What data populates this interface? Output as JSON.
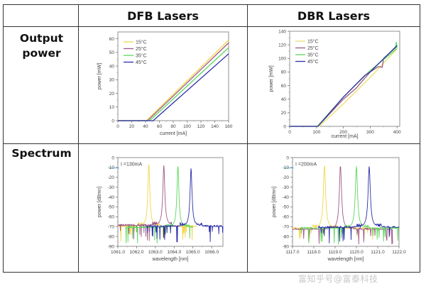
{
  "table": {
    "column_headers": [
      "",
      "DFB Lasers",
      "DBR Lasers"
    ],
    "row_headers": [
      {
        "line1": "Output",
        "line2": "power"
      },
      {
        "line1": "Spectrum",
        "line2": ""
      }
    ]
  },
  "watermark": "富知乎号@富泰科技",
  "colors": {
    "t15": "#f2d64a",
    "t25": "#9e5a86",
    "t35": "#5cd65c",
    "t45": "#2b2fa8",
    "border": "#333333"
  },
  "chart_data": [
    {
      "id": "dfb_power",
      "type": "line",
      "title": "DFB Lasers - Output power",
      "xlabel": "current [mA]",
      "ylabel": "power [mW]",
      "xlim": [
        0,
        160
      ],
      "ylim": [
        0,
        65
      ],
      "xticks": [
        0,
        20,
        40,
        60,
        80,
        100,
        120,
        140,
        160
      ],
      "yticks": [
        0,
        10,
        20,
        30,
        40,
        50,
        60
      ],
      "legend": [
        "15°C",
        "25°C",
        "35°C",
        "45°C"
      ],
      "legend_position": "upper-left",
      "series": [
        {
          "name": "15°C",
          "color": "#f2d64a",
          "x": [
            0,
            41,
            160
          ],
          "y": [
            0,
            0,
            59
          ]
        },
        {
          "name": "25°C",
          "color": "#9e5a86",
          "x": [
            0,
            43,
            160
          ],
          "y": [
            0,
            0,
            57
          ]
        },
        {
          "name": "35°C",
          "color": "#5cd65c",
          "x": [
            0,
            46,
            160
          ],
          "y": [
            0,
            0,
            53.5
          ]
        },
        {
          "name": "45°C",
          "color": "#2b2fa8",
          "x": [
            0,
            51,
            160
          ],
          "y": [
            0,
            0,
            49
          ]
        }
      ]
    },
    {
      "id": "dbr_power",
      "type": "line",
      "title": "DBR Lasers - Output power",
      "xlabel": "current [mA]",
      "ylabel": "power [mW]",
      "xlim": [
        0,
        410
      ],
      "ylim": [
        0,
        140
      ],
      "xticks": [
        0,
        100,
        200,
        300,
        400
      ],
      "yticks": [
        0,
        20,
        40,
        60,
        80,
        100,
        120,
        140
      ],
      "legend": [
        "15°C",
        "25°C",
        "35°C",
        "45°C"
      ],
      "legend_position": "upper-left",
      "series": [
        {
          "name": "15°C",
          "color": "#e8e070",
          "x": [
            0,
            110,
            200,
            300,
            400
          ],
          "y": [
            0,
            0,
            33,
            72,
            114
          ]
        },
        {
          "name": "25°C",
          "color": "#9e5a86",
          "x": [
            0,
            105,
            200,
            250,
            260,
            300,
            330,
            345,
            350,
            400
          ],
          "y": [
            0,
            0,
            40,
            57,
            62,
            80,
            88,
            87,
            100,
            118
          ]
        },
        {
          "name": "35°C",
          "color": "#5cd65c",
          "x": [
            0,
            103,
            200,
            300,
            395,
            397,
            400
          ],
          "y": [
            0,
            0,
            43,
            82,
            113,
            124,
            115
          ]
        },
        {
          "name": "45°C",
          "color": "#2b2fa8",
          "x": [
            0,
            105,
            200,
            280,
            300,
            400
          ],
          "y": [
            0,
            0,
            43,
            75,
            80,
            119
          ]
        }
      ]
    },
    {
      "id": "dfb_spectrum",
      "type": "line",
      "title": "DFB Lasers - Spectrum",
      "annotation": "I =130mA",
      "xlabel": "wavelength [nm]",
      "ylabel": "power [dBmn]",
      "xlim": [
        1061.0,
        1066.6
      ],
      "ylim": [
        -90,
        0
      ],
      "xticks": [
        1061.0,
        1062.0,
        1063.0,
        1064.0,
        1065.0,
        1066.0
      ],
      "xtick_labels": [
        "1061.0",
        "1062.0",
        "1063.0",
        "1064.0",
        "1065.0",
        "1066.0"
      ],
      "yticks": [
        0,
        -10,
        -20,
        -30,
        -40,
        -50,
        -60,
        -70,
        -80,
        -90
      ],
      "series": [
        {
          "name": "15°C",
          "color": "#f2d64a",
          "peak_x": 1062.65,
          "peak_y": -7,
          "range": [
            1061.0,
            1065.2
          ],
          "floor": -70
        },
        {
          "name": "25°C",
          "color": "#9e5a86",
          "peak_x": 1063.45,
          "peak_y": -8,
          "range": [
            1061.0,
            1063.9
          ],
          "floor": -69
        },
        {
          "name": "35°C",
          "color": "#5cd65c",
          "peak_x": 1064.2,
          "peak_y": -9,
          "range": [
            1061.4,
            1065.0
          ],
          "floor": -71
        },
        {
          "name": "45°C",
          "color": "#2b2fa8",
          "peak_x": 1064.9,
          "peak_y": -11,
          "range": [
            1062.5,
            1066.6
          ],
          "floor": -70
        }
      ]
    },
    {
      "id": "dbr_spectrum",
      "type": "line",
      "title": "DBR Lasers - Spectrum",
      "annotation": "I =200mA",
      "xlabel": "wavelength [nm]",
      "ylabel": "power [dBmn]",
      "xlim": [
        1117.0,
        1122.0
      ],
      "ylim": [
        -90,
        0
      ],
      "xticks": [
        1117.0,
        1118.0,
        1119.0,
        1120.0,
        1121.0,
        1122.0
      ],
      "xtick_labels": [
        "1117.0",
        "1118.0",
        "1119.0",
        "1120.0",
        "1121.0",
        "1122.0"
      ],
      "yticks": [
        0,
        -10,
        -20,
        -30,
        -40,
        -50,
        -60,
        -70,
        -80,
        -90
      ],
      "series": [
        {
          "name": "15°C",
          "color": "#f2d64a",
          "peak_x": 1118.5,
          "peak_y": -8,
          "range": [
            1117.0,
            1120.8
          ],
          "floor": -72
        },
        {
          "name": "25°C",
          "color": "#9e5a86",
          "peak_x": 1119.25,
          "peak_y": -8,
          "range": [
            1117.0,
            1121.7
          ],
          "floor": -73
        },
        {
          "name": "35°C",
          "color": "#5cd65c",
          "peak_x": 1120.0,
          "peak_y": -9,
          "range": [
            1117.4,
            1122.0
          ],
          "floor": -72
        },
        {
          "name": "45°C",
          "color": "#2b2fa8",
          "peak_x": 1120.6,
          "peak_y": -9,
          "range": [
            1118.2,
            1122.0
          ],
          "floor": -71
        }
      ]
    }
  ]
}
